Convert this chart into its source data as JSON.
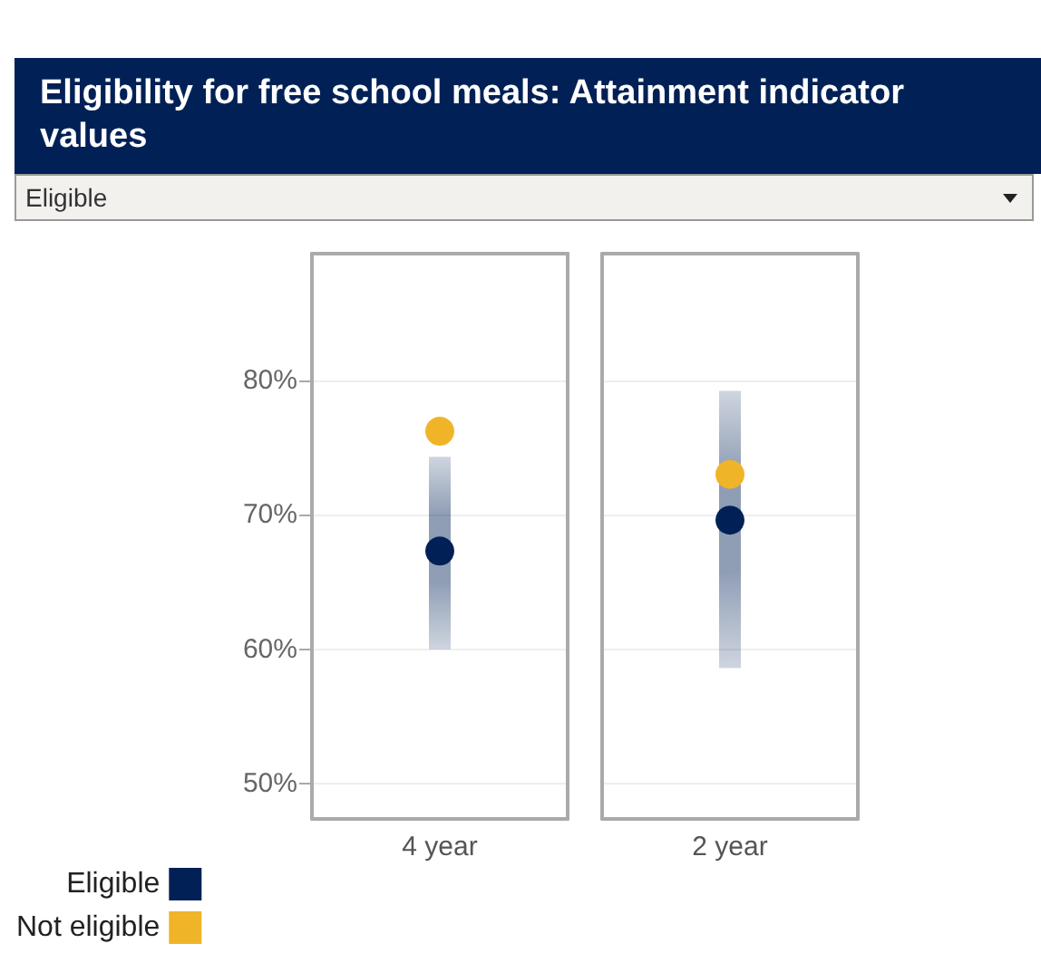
{
  "chart_data": {
    "type": "scatter",
    "title": "Eligibility for free school meals: Attainment indicator values",
    "annotations": [
      "Eligible"
    ],
    "categories": [
      "4 year",
      "2 year"
    ],
    "series": [
      {
        "name": "Eligible",
        "color": "#012156",
        "values": [
          67.3,
          69.6
        ],
        "errors": [
          [
            60.0,
            74.3
          ],
          [
            58.6,
            79.2
          ]
        ]
      },
      {
        "name": "Not eligible",
        "color": "#f0b429",
        "values": [
          76.2,
          73.0
        ]
      }
    ],
    "ylim": [
      47.4,
      89.4
    ],
    "yticks": [
      {
        "value": 50,
        "label": "50%"
      },
      {
        "value": 60,
        "label": "60%"
      },
      {
        "value": 70,
        "label": "70%"
      },
      {
        "value": 80,
        "label": "80%"
      }
    ],
    "grid": "y",
    "marker": "circle",
    "legend": "bottom left"
  }
}
